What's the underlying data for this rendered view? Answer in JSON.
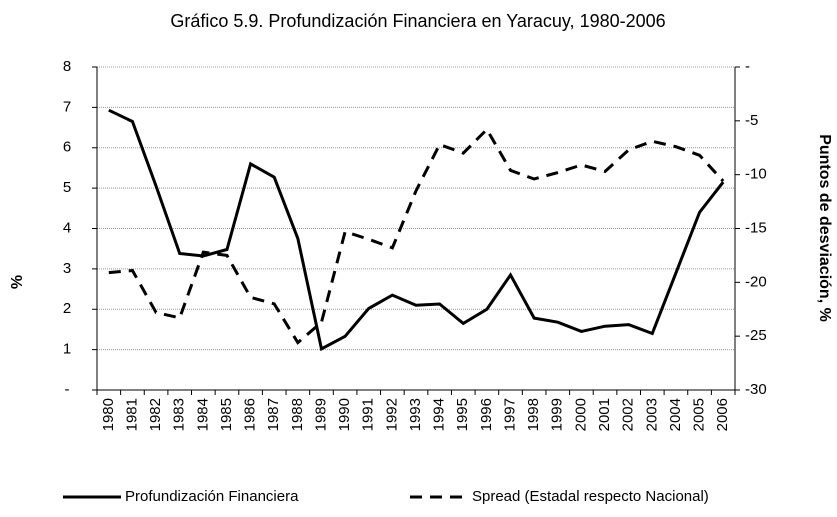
{
  "chart_data": {
    "type": "line",
    "title": "Gráfico 5.9. Profundización Financiera en Yaracuy, 1980-2006",
    "ylabel": "%",
    "y2label": "Puntos de desviación, %",
    "categories": [
      "1980",
      "1981",
      "1982",
      "1983",
      "1984",
      "1985",
      "1986",
      "1987",
      "1988",
      "1989",
      "1990",
      "1991",
      "1992",
      "1993",
      "1994",
      "1995",
      "1996",
      "1997",
      "1998",
      "1999",
      "2000",
      "2001",
      "2002",
      "2003",
      "2004",
      "2005",
      "2006"
    ],
    "series": [
      {
        "name": "Profundización Financiera",
        "color": "#000000",
        "line_style": "solid",
        "values": [
          6.93,
          6.65,
          5.05,
          3.38,
          3.32,
          3.48,
          5.6,
          5.27,
          3.75,
          1.02,
          1.33,
          2.02,
          2.35,
          2.1,
          2.13,
          1.65,
          2.0,
          2.85,
          1.78,
          1.68,
          1.45,
          1.58,
          1.62,
          1.4,
          2.9,
          4.4,
          5.15
        ]
      },
      {
        "name": "Spread (Estadal respecto Nacional)",
        "color": "#000000",
        "line_style": "dashed",
        "axis": "y2",
        "values": [
          -19.1,
          -18.9,
          -22.8,
          -23.3,
          -17.2,
          -17.5,
          -21.4,
          -22.0,
          -25.6,
          -23.7,
          -15.3,
          -16.0,
          -16.8,
          -11.5,
          -7.2,
          -8.0,
          -5.8,
          -9.6,
          -10.4,
          -9.8,
          -9.1,
          -9.7,
          -7.7,
          -6.9,
          -7.4,
          -8.2,
          -10.6
        ]
      }
    ],
    "ylim": [
      0,
      8
    ],
    "yticks": [
      {
        "value": 0,
        "label": "-"
      },
      1,
      2,
      3,
      4,
      5,
      6,
      7,
      8
    ],
    "y2lim": [
      -30,
      0
    ],
    "y2ticks": [
      -30,
      -25,
      -20,
      -15,
      -10,
      -5,
      {
        "value": 0,
        "label": "-"
      }
    ],
    "grid": true,
    "legend": "bottom"
  }
}
